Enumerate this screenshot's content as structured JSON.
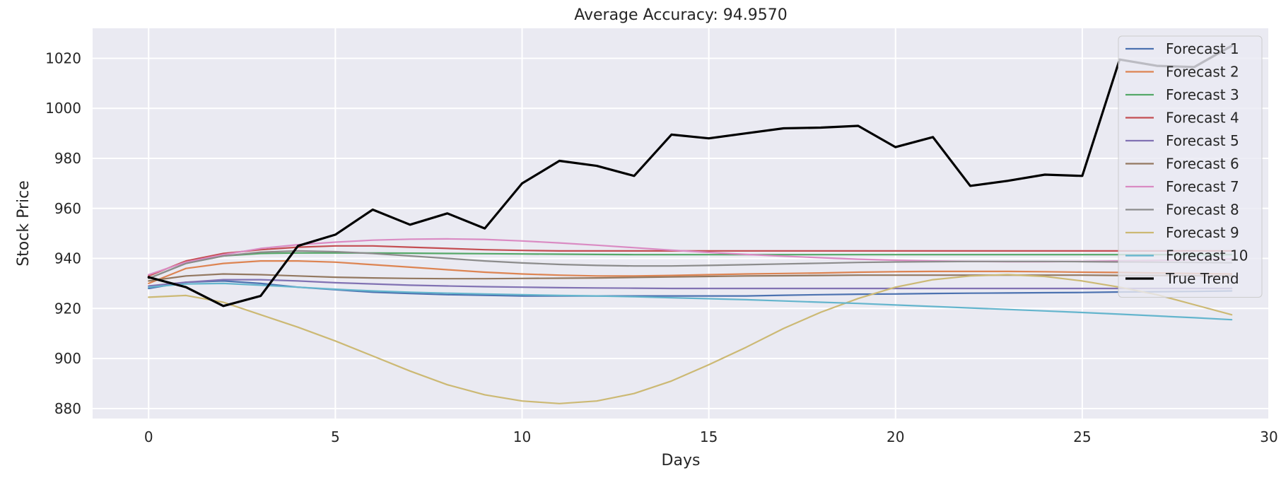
{
  "chart_data": {
    "type": "line",
    "title": "Average Accuracy: 94.9570",
    "xlabel": "Days",
    "ylabel": "Stock Price",
    "xlim": [
      -1.5,
      30.0
    ],
    "ylim": [
      876,
      1032
    ],
    "xticks": [
      0,
      5,
      10,
      15,
      20,
      25,
      30
    ],
    "yticks": [
      880,
      900,
      920,
      940,
      960,
      980,
      1000,
      1020
    ],
    "grid": true,
    "legend_position": "top-right",
    "x": [
      0,
      1,
      2,
      3,
      4,
      5,
      6,
      7,
      8,
      9,
      10,
      11,
      12,
      13,
      14,
      15,
      16,
      17,
      18,
      19,
      20,
      21,
      22,
      23,
      24,
      25,
      26,
      27,
      28,
      29
    ],
    "series": [
      {
        "name": "Forecast 1",
        "color": "#4c72b0",
        "values": [
          928,
          930.5,
          931,
          930,
          928.5,
          927.5,
          926.5,
          926,
          925.5,
          925.3,
          925,
          925,
          925,
          925,
          925,
          925,
          925,
          925.3,
          925.5,
          925.7,
          925.8,
          926,
          926.1,
          926.2,
          926.3,
          926.4,
          926.6,
          926.7,
          926.8,
          927
        ]
      },
      {
        "name": "Forecast 2",
        "color": "#dd8452",
        "values": [
          930,
          936,
          938,
          939,
          939,
          938.5,
          937.5,
          936.5,
          935.5,
          934.5,
          933.8,
          933.3,
          933,
          933,
          933.2,
          933.5,
          933.8,
          934,
          934.2,
          934.5,
          934.7,
          934.8,
          934.8,
          934.8,
          934.7,
          934.5,
          934.4,
          934.2,
          934,
          933.8
        ]
      },
      {
        "name": "Forecast 3",
        "color": "#55a868",
        "values": [
          932,
          938,
          941,
          942,
          942.2,
          942.2,
          942.2,
          942.1,
          942,
          941.9,
          941.8,
          941.7,
          941.6,
          941.5,
          941.5,
          941.5,
          941.5,
          941.5,
          941.5,
          941.5,
          941.5,
          941.5,
          941.5,
          941.5,
          941.5,
          941.5,
          941.5,
          941.5,
          941.5,
          941.5
        ]
      },
      {
        "name": "Forecast 4",
        "color": "#c44e52",
        "values": [
          933,
          939,
          942,
          943.5,
          944.5,
          945,
          945,
          944.5,
          944,
          943.5,
          943.2,
          943,
          943,
          943,
          943,
          943,
          943,
          943,
          943,
          943,
          943,
          943,
          943,
          943,
          943,
          943,
          943,
          943,
          943,
          943
        ]
      },
      {
        "name": "Forecast 5",
        "color": "#8172b3",
        "values": [
          929,
          930.5,
          931.5,
          931.5,
          931,
          930.3,
          929.8,
          929.3,
          929,
          928.7,
          928.5,
          928.3,
          928.2,
          928.1,
          928,
          928,
          928,
          928,
          928,
          928,
          928,
          928,
          928,
          928,
          928,
          928,
          928,
          928,
          928,
          928
        ]
      },
      {
        "name": "Forecast 6",
        "color": "#937860",
        "values": [
          931,
          933,
          933.8,
          933.5,
          933,
          932.5,
          932.2,
          932,
          931.9,
          931.9,
          932,
          932.1,
          932.2,
          932.4,
          932.6,
          932.8,
          933,
          933.1,
          933.2,
          933.3,
          933.3,
          933.3,
          933.3,
          933.3,
          933.3,
          933.3,
          933.2,
          933.2,
          933.1,
          933
        ]
      },
      {
        "name": "Forecast 7",
        "color": "#da8bc3",
        "values": [
          933.5,
          938.5,
          941.5,
          944,
          945.5,
          946.5,
          947.3,
          947.7,
          947.8,
          947.6,
          947,
          946.2,
          945.3,
          944.3,
          943.3,
          942.4,
          941.6,
          940.9,
          940.3,
          939.7,
          939.3,
          939,
          938.8,
          938.7,
          938.7,
          938.8,
          939,
          939.2,
          939.5,
          939.8
        ]
      },
      {
        "name": "Forecast 8",
        "color": "#8c8c8c",
        "values": [
          932,
          938,
          941,
          942.5,
          943,
          942.7,
          942,
          941,
          940,
          939,
          938.2,
          937.6,
          937.2,
          937,
          937,
          937.2,
          937.5,
          937.8,
          938.1,
          938.4,
          938.6,
          938.7,
          938.8,
          938.8,
          938.8,
          938.7,
          938.6,
          938.5,
          938.4,
          938.3
        ]
      },
      {
        "name": "Forecast 9",
        "color": "#ccb974",
        "values": [
          924.5,
          925.2,
          922.5,
          917.5,
          912.5,
          907,
          901,
          895,
          889.5,
          885.5,
          883,
          882,
          883,
          886,
          891,
          897.5,
          904.5,
          912,
          918.5,
          924,
          928.5,
          931.5,
          933,
          933.5,
          932.8,
          931,
          928.5,
          925.5,
          921.5,
          917.5
        ]
      },
      {
        "name": "Forecast 10",
        "color": "#64b5cd",
        "values": [
          928.5,
          929.8,
          930,
          929.3,
          928.5,
          927.7,
          927,
          926.5,
          926.1,
          925.8,
          925.5,
          925.2,
          925,
          924.7,
          924.3,
          923.9,
          923.5,
          923,
          922.5,
          922,
          921.4,
          920.8,
          920.2,
          919.6,
          919,
          918.4,
          917.7,
          917,
          916.3,
          915.5
        ]
      },
      {
        "name": "True Trend",
        "color": "#000000",
        "values": [
          932.5,
          928.5,
          921,
          925,
          945,
          949.5,
          959.5,
          953.5,
          958,
          952,
          970,
          979,
          977,
          973,
          989.5,
          988,
          990,
          992,
          992.3,
          993,
          984.5,
          988.5,
          969,
          971,
          973.5,
          973,
          1019.5,
          1017,
          1016.5,
          1025
        ]
      }
    ]
  }
}
